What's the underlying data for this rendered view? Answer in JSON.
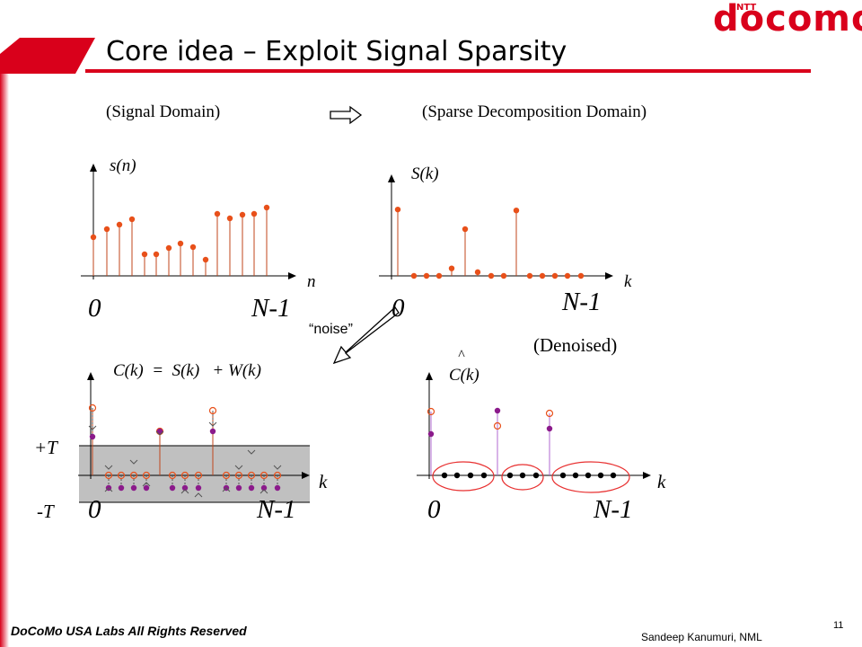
{
  "slide": {
    "title": "Core idea – Exploit Signal Sparsity",
    "logo_text": "docomo",
    "logo_superscript": "NTT",
    "signal_domain_label": "(Signal Domain)",
    "sparse_domain_label": "(Sparse Decomposition Domain)",
    "noise_label": "“noise”",
    "denoised_label": "(Denoised)",
    "equation": "C(k)  =  S(k)   + W(k)",
    "footer_left": "DoCoMo USA Labs All Rights Reserved",
    "footer_right": "Sandeep Kanumuri,  NML",
    "page_number": "11",
    "colors": {
      "accent": "#d9001b",
      "stem": "#c0461b",
      "dot": "#e8501a",
      "noise_dot": "#8b1a8b",
      "band": "#c0c0c0"
    }
  },
  "plots": {
    "signal": {
      "ylabel": "s(n)",
      "xlabel": "n",
      "x_start": "0",
      "x_end": "N-1",
      "values": [
        0.43,
        0.52,
        0.57,
        0.63,
        0.24,
        0.24,
        0.31,
        0.36,
        0.32,
        0.18,
        0.69,
        0.64,
        0.68,
        0.69,
        0.76
      ]
    },
    "sparse": {
      "ylabel": "S(k)",
      "xlabel": "k",
      "x_start": "0",
      "x_end": "N-1",
      "values": [
        0.71,
        0,
        0,
        0,
        0.08,
        0.5,
        0.04,
        0,
        0,
        0.7,
        0,
        0,
        0,
        0,
        0
      ]
    },
    "noisy": {
      "equation_ref": "C(k) = S(k) + W(k)",
      "xlabel": "k",
      "x_start": "0",
      "x_end": "N-1",
      "threshold_pos": "+T",
      "threshold_neg": "-T"
    },
    "denoised": {
      "ylabel_hat": "^",
      "ylabel": "C(k)",
      "xlabel": "k",
      "x_start": "0",
      "x_end": "N-1"
    }
  }
}
